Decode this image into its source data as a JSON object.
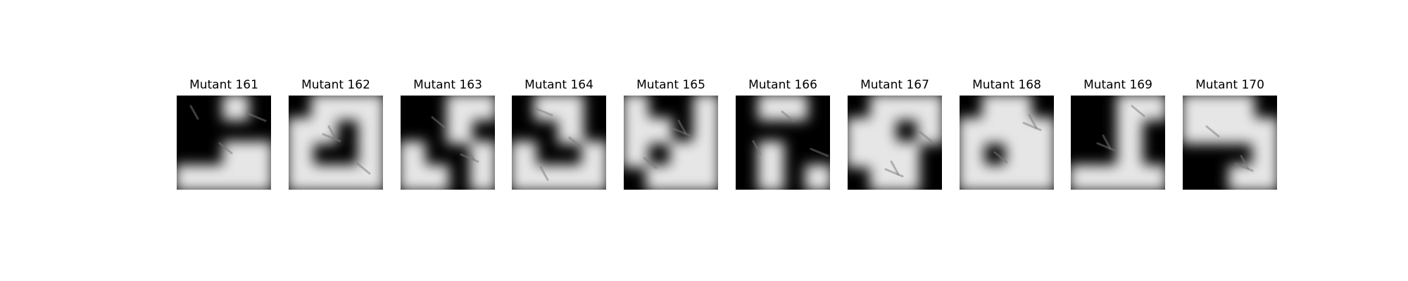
{
  "panels": [
    {
      "title": "Mutant 161",
      "mask": [
        [
          0,
          0,
          1,
          0
        ],
        [
          0,
          0,
          0,
          0
        ],
        [
          0,
          0,
          1,
          1
        ],
        [
          1,
          1,
          1,
          1
        ]
      ]
    },
    {
      "title": "Mutant 162",
      "mask": [
        [
          0,
          1,
          1,
          1
        ],
        [
          1,
          1,
          0,
          1
        ],
        [
          1,
          0,
          0,
          1
        ],
        [
          1,
          1,
          1,
          1
        ]
      ]
    },
    {
      "title": "Mutant 163",
      "mask": [
        [
          0,
          0,
          1,
          1
        ],
        [
          0,
          0,
          1,
          0
        ],
        [
          1,
          0,
          0,
          1
        ],
        [
          1,
          1,
          0,
          1
        ]
      ]
    },
    {
      "title": "Mutant 164",
      "mask": [
        [
          0,
          1,
          1,
          0
        ],
        [
          0,
          0,
          1,
          0
        ],
        [
          1,
          0,
          0,
          1
        ],
        [
          1,
          1,
          1,
          1
        ]
      ]
    },
    {
      "title": "Mutant 165",
      "mask": [
        [
          1,
          0,
          0,
          1
        ],
        [
          1,
          1,
          0,
          1
        ],
        [
          1,
          0,
          1,
          1
        ],
        [
          0,
          1,
          1,
          1
        ]
      ]
    },
    {
      "title": "Mutant 166",
      "mask": [
        [
          0,
          1,
          1,
          0
        ],
        [
          0,
          0,
          0,
          0
        ],
        [
          0,
          1,
          0,
          0
        ],
        [
          0,
          1,
          0,
          1
        ]
      ]
    },
    {
      "title": "Mutant 167",
      "mask": [
        [
          0,
          1,
          1,
          1
        ],
        [
          1,
          1,
          0,
          1
        ],
        [
          1,
          1,
          1,
          0
        ],
        [
          0,
          1,
          1,
          0
        ]
      ]
    },
    {
      "title": "Mutant 168",
      "mask": [
        [
          0,
          1,
          1,
          0
        ],
        [
          1,
          1,
          1,
          1
        ],
        [
          1,
          0,
          1,
          1
        ],
        [
          1,
          1,
          1,
          1
        ]
      ]
    },
    {
      "title": "Mutant 169",
      "mask": [
        [
          0,
          0,
          1,
          1
        ],
        [
          0,
          0,
          1,
          0
        ],
        [
          0,
          0,
          1,
          0
        ],
        [
          1,
          1,
          1,
          1
        ]
      ]
    },
    {
      "title": "Mutant 170",
      "mask": [
        [
          1,
          1,
          1,
          0
        ],
        [
          1,
          1,
          1,
          1
        ],
        [
          0,
          0,
          0,
          1
        ],
        [
          0,
          0,
          1,
          1
        ]
      ]
    }
  ],
  "colors": {
    "background": "#ffffff",
    "dark": "#000000",
    "light": "#e6e6e6"
  }
}
